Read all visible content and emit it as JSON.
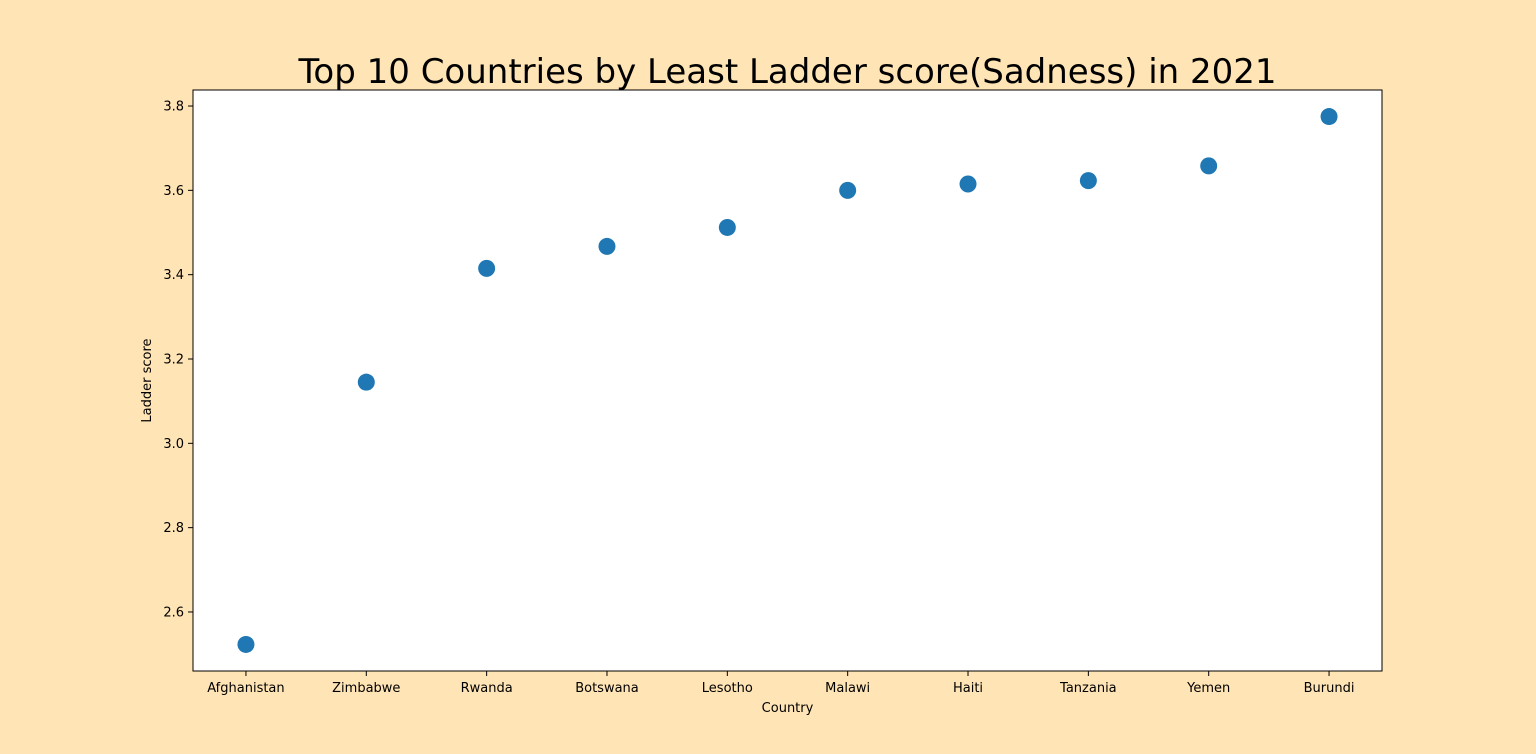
{
  "colors": {
    "figure_background": "#ffe4b5",
    "plot_background": "#ffffff",
    "marker": "#1f77b4",
    "axis": "#000000"
  },
  "chart_data": {
    "type": "scatter",
    "title": "Top 10 Countries by Least Ladder score(Sadness) in 2021",
    "xlabel": "Country",
    "ylabel": "Ladder score",
    "categories": [
      "Afghanistan",
      "Zimbabwe",
      "Rwanda",
      "Botswana",
      "Lesotho",
      "Malawi",
      "Haiti",
      "Tanzania",
      "Yemen",
      "Burundi"
    ],
    "values": [
      2.523,
      3.145,
      3.415,
      3.467,
      3.512,
      3.6,
      3.615,
      3.623,
      3.658,
      3.775
    ],
    "ylim": [
      2.46,
      3.838
    ],
    "yticks": [
      2.6,
      2.8,
      3.0,
      3.2,
      3.4,
      3.6,
      3.8
    ],
    "ytick_labels": [
      "2.6",
      "2.8",
      "3.0",
      "3.2",
      "3.4",
      "3.6",
      "3.8"
    ],
    "grid": false,
    "legend": "none"
  }
}
